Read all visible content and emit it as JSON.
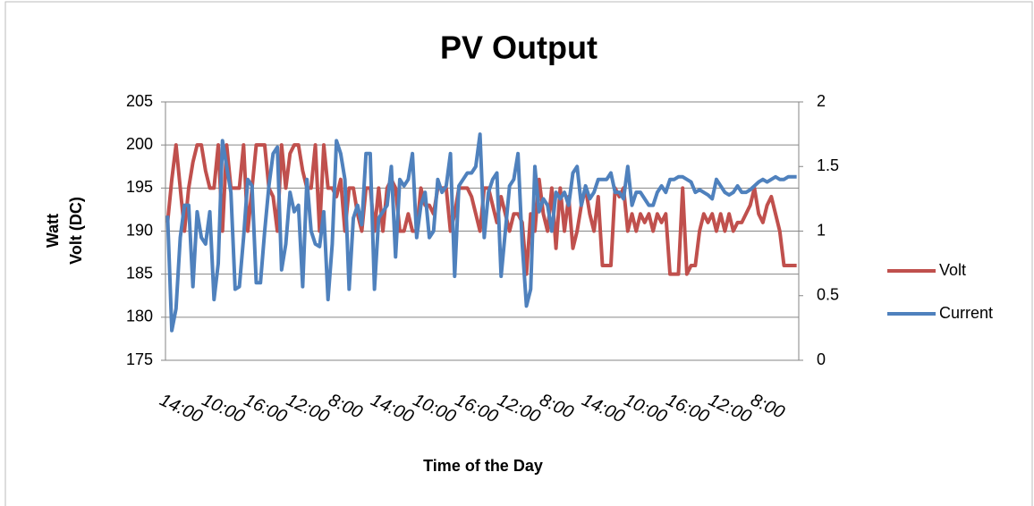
{
  "chart_data": {
    "type": "line",
    "title": "PV Output",
    "x_label": "Time of the Day",
    "y_label": [
      "Watt",
      "Volt (DC)"
    ],
    "categories": [
      "14:00",
      null,
      null,
      null,
      null,
      null,
      null,
      null,
      null,
      null,
      "10:00",
      null,
      null,
      null,
      null,
      null,
      null,
      null,
      null,
      null,
      "16:00",
      null,
      null,
      null,
      null,
      null,
      null,
      null,
      null,
      null,
      "12:00",
      null,
      null,
      null,
      null,
      null,
      null,
      null,
      null,
      null,
      "8:00",
      null,
      null,
      null,
      null,
      null,
      null,
      null,
      null,
      null,
      "14:00",
      null,
      null,
      null,
      null,
      null,
      null,
      null,
      null,
      null,
      "10:00",
      null,
      null,
      null,
      null,
      null,
      null,
      null,
      null,
      null,
      "16:00",
      null,
      null,
      null,
      null,
      null,
      null,
      null,
      null,
      null,
      "12:00",
      null,
      null,
      null,
      null,
      null,
      null,
      null,
      null,
      null,
      "8:00",
      null,
      null,
      null,
      null,
      null,
      null,
      null,
      null,
      null,
      "14:00",
      null,
      null,
      null,
      null,
      null,
      null,
      null,
      null,
      null,
      "10:00",
      null,
      null,
      null,
      null,
      null,
      null,
      null,
      null,
      null,
      "16:00",
      null,
      null,
      null,
      null,
      null,
      null,
      null,
      null,
      null,
      "12:00",
      null,
      null,
      null,
      null,
      null,
      null,
      null,
      null,
      null,
      "8:00",
      null,
      null,
      null,
      null,
      null,
      null,
      null,
      null,
      null
    ],
    "series": [
      {
        "name": "Volt",
        "color": "#c0504d",
        "axis": "y",
        "values": [
          191,
          196,
          200,
          195,
          190,
          195,
          198,
          200,
          200,
          197,
          195,
          195,
          200,
          190,
          200,
          195,
          195,
          195,
          200,
          190,
          195,
          200,
          200,
          200,
          195,
          194,
          190,
          200,
          195,
          199,
          200,
          200,
          197,
          195,
          195,
          200,
          190,
          200,
          195,
          195,
          194,
          196,
          190,
          195,
          195,
          192,
          190,
          195,
          195,
          190,
          195,
          190,
          195,
          196,
          195,
          190,
          190,
          192,
          190,
          190,
          195,
          193,
          193,
          192,
          195,
          195,
          195,
          190,
          192,
          195,
          195,
          195,
          194,
          192,
          190,
          195,
          195,
          193,
          191,
          194,
          192,
          190,
          192,
          192,
          191,
          185,
          192,
          190,
          196,
          192,
          190,
          195,
          188,
          195,
          190,
          194,
          188,
          190,
          193,
          195,
          192,
          190,
          194,
          186,
          186,
          186,
          195,
          194,
          195,
          190,
          192,
          190,
          192,
          191,
          192,
          190,
          192,
          191,
          192,
          185,
          185,
          185,
          195,
          185,
          186,
          186,
          190,
          192,
          191,
          192,
          190,
          192,
          190,
          192,
          190,
          191,
          191,
          192,
          193,
          195,
          192,
          191,
          193,
          194,
          192,
          190,
          186,
          186,
          186,
          186
        ]
      },
      {
        "name": "Current",
        "color": "#4f81bd",
        "axis": "y2",
        "values": [
          1.12,
          0.23,
          0.4,
          0.95,
          1.2,
          1.2,
          0.57,
          1.15,
          0.95,
          0.9,
          1.15,
          0.47,
          0.75,
          1.7,
          1.5,
          1.3,
          0.55,
          0.57,
          0.95,
          1.4,
          1.35,
          0.6,
          0.6,
          1.0,
          1.35,
          1.6,
          1.65,
          0.7,
          0.9,
          1.3,
          1.15,
          1.2,
          0.57,
          1.4,
          1.0,
          0.9,
          0.88,
          1.15,
          0.47,
          0.9,
          1.7,
          1.6,
          1.4,
          0.55,
          1.1,
          1.2,
          1.05,
          1.6,
          1.6,
          0.55,
          1.1,
          1.15,
          1.2,
          1.5,
          0.8,
          1.4,
          1.35,
          1.4,
          1.6,
          0.95,
          1.2,
          1.3,
          0.95,
          1.0,
          1.4,
          1.3,
          1.35,
          1.6,
          0.65,
          1.35,
          1.4,
          1.45,
          1.45,
          1.5,
          1.75,
          0.95,
          1.3,
          1.4,
          1.45,
          0.65,
          1.0,
          1.35,
          1.4,
          1.6,
          0.9,
          0.42,
          0.55,
          1.5,
          1.15,
          1.25,
          1.2,
          1.0,
          1.3,
          1.25,
          1.3,
          1.2,
          1.45,
          1.5,
          1.2,
          1.35,
          1.25,
          1.3,
          1.4,
          1.4,
          1.4,
          1.45,
          1.3,
          1.3,
          1.25,
          1.5,
          1.2,
          1.3,
          1.3,
          1.25,
          1.2,
          1.2,
          1.3,
          1.35,
          1.3,
          1.4,
          1.4,
          1.42,
          1.42,
          1.4,
          1.38,
          1.3,
          1.32,
          1.3,
          1.28,
          1.25,
          1.4,
          1.35,
          1.3,
          1.28,
          1.3,
          1.35,
          1.3,
          1.3,
          1.32,
          1.35,
          1.38,
          1.4,
          1.38,
          1.4,
          1.42,
          1.4,
          1.4,
          1.42,
          1.42,
          1.42
        ]
      }
    ],
    "ylim": [
      175,
      205
    ],
    "yticks": [
      175,
      180,
      185,
      190,
      195,
      200,
      205
    ],
    "y2lim": [
      0,
      2
    ],
    "y2ticks": [
      0,
      0.5,
      1,
      1.5,
      2
    ],
    "grid": true,
    "legend": "right"
  }
}
